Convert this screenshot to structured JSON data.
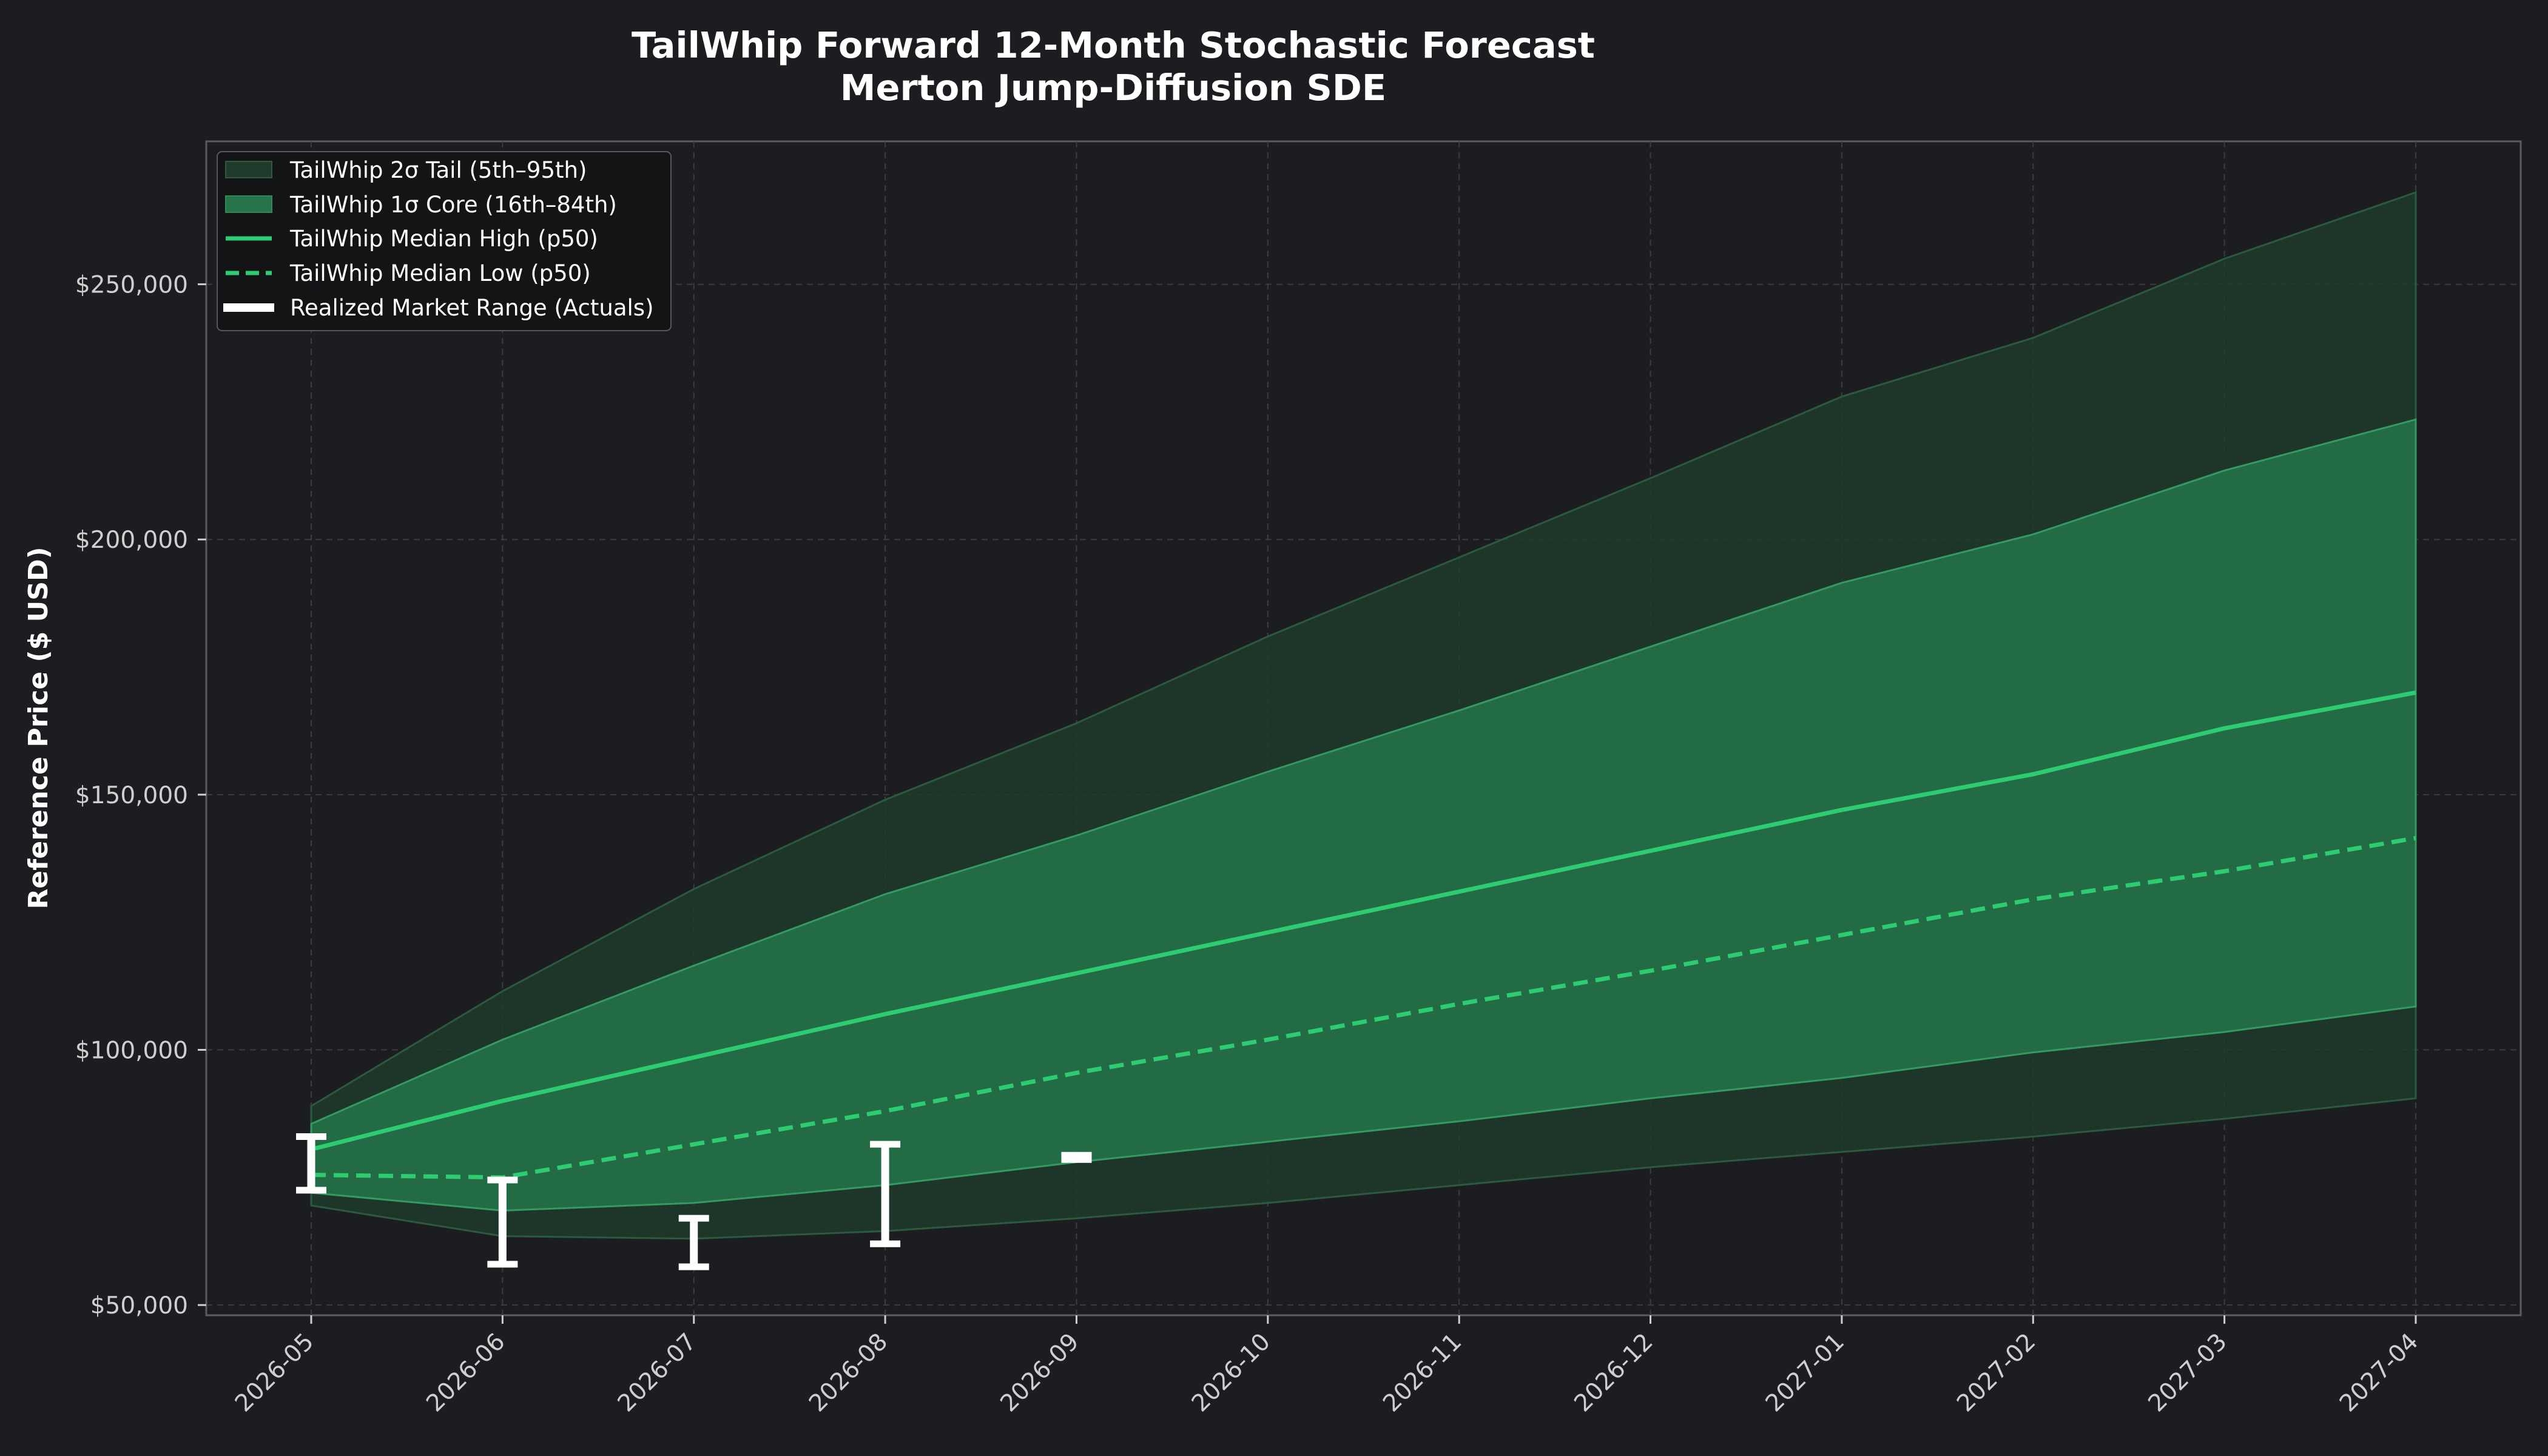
{
  "chart_data": {
    "type": "area",
    "title": "TailWhip Forward 12-Month Stochastic Forecast",
    "subtitle": "Merton Jump-Diffusion SDE",
    "xlabel": "",
    "ylabel": "Reference Price ($ USD)",
    "ylim": [
      48000,
      278000
    ],
    "yticks": [
      50000,
      100000,
      150000,
      200000,
      250000
    ],
    "ytick_labels": [
      "$50,000",
      "$100,000",
      "$150,000",
      "$200,000",
      "$250,000"
    ],
    "x": [
      "2026-05",
      "2026-06",
      "2026-07",
      "2026-08",
      "2026-09",
      "2026-10",
      "2026-11",
      "2026-12",
      "2027-01",
      "2027-02",
      "2027-03",
      "2027-04"
    ],
    "grid": true,
    "legend_position": "top-left",
    "bands": [
      {
        "name": "TailWhip 2σ Tail (5th–95th)",
        "color": "#1f3b2c",
        "lower": [
          69500,
          63500,
          63000,
          64500,
          67000,
          70000,
          73500,
          77000,
          80000,
          83000,
          86500,
          90500
        ],
        "upper": [
          89000,
          111500,
          131500,
          149000,
          164000,
          181000,
          196500,
          212000,
          228000,
          239500,
          255000,
          268000
        ]
      },
      {
        "name": "TailWhip 1σ Core (16th–84th)",
        "color": "#25744a",
        "lower": [
          72000,
          68500,
          70000,
          73500,
          78000,
          82000,
          86000,
          90500,
          94500,
          99500,
          103500,
          108500
        ],
        "upper": [
          85500,
          102000,
          116500,
          130500,
          142000,
          154500,
          166500,
          179000,
          191500,
          201000,
          213500,
          223500
        ]
      }
    ],
    "series": [
      {
        "name": "TailWhip Median High (p50)",
        "color": "#2ecc71",
        "style": "solid",
        "values": [
          80500,
          90000,
          98500,
          107000,
          115000,
          123000,
          131000,
          139000,
          147000,
          154000,
          163000,
          170000
        ]
      },
      {
        "name": "TailWhip Median Low (p50)",
        "color": "#2ecc71",
        "style": "dashed",
        "values": [
          75500,
          75000,
          81500,
          88000,
          95500,
          102000,
          109000,
          115500,
          122500,
          129500,
          135000,
          141500
        ]
      }
    ],
    "actuals": {
      "name": "Realized Market Range (Actuals)",
      "color": "#ffffff",
      "ranges": [
        {
          "x": "2026-05",
          "low": 72500,
          "high": 83000
        },
        {
          "x": "2026-06",
          "low": 58000,
          "high": 74500
        },
        {
          "x": "2026-07",
          "low": 57500,
          "high": 67000
        },
        {
          "x": "2026-08",
          "low": 62000,
          "high": 81500
        },
        {
          "x": "2026-09",
          "low": 78000,
          "high": 80000
        }
      ]
    }
  }
}
